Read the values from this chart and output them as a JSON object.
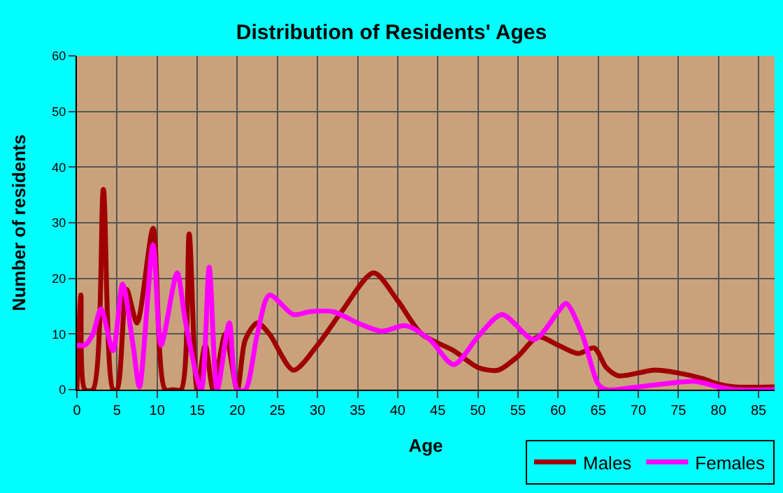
{
  "chart_data": {
    "type": "line",
    "title": "Distribution of Residents' Ages",
    "xlabel": "Age",
    "ylabel": "Number of residents",
    "xlim": [
      0,
      87
    ],
    "xticks": [
      0,
      5,
      10,
      15,
      20,
      25,
      30,
      35,
      40,
      45,
      50,
      55,
      60,
      65,
      70,
      75,
      80,
      85
    ],
    "ylim": [
      0,
      60
    ],
    "yticks": [
      0,
      10,
      20,
      30,
      40,
      50,
      60
    ],
    "grid": true,
    "legend": "bottom right",
    "marker": "none",
    "line_style": "solid",
    "series": [
      {
        "name": "Males",
        "color": "#a00000",
        "x": [
          0,
          0.5,
          1,
          2,
          3.3,
          4.5,
          5,
          6.2,
          7.5,
          9.5,
          11,
          12,
          13,
          14,
          15,
          16,
          17,
          18.5,
          20,
          21,
          22.5,
          24,
          27,
          30,
          33,
          37,
          40,
          43,
          47,
          50,
          52.5,
          55,
          57.5,
          60,
          62.5,
          64.5,
          66,
          67.5,
          70,
          72,
          75,
          78,
          80,
          82,
          87
        ],
        "values": [
          0,
          17,
          0,
          0,
          36,
          0,
          0,
          18,
          12,
          29,
          0,
          0,
          0,
          28,
          0,
          8,
          0,
          10,
          0,
          9,
          12,
          10,
          3.5,
          8,
          14,
          21,
          16,
          10,
          7,
          4,
          3.5,
          6,
          9.5,
          8,
          6.5,
          7.5,
          4,
          2.5,
          3,
          3.5,
          3,
          2,
          1,
          0.5,
          0.5
        ]
      },
      {
        "name": "Females",
        "color": "#ff00ff",
        "x": [
          0,
          1,
          2,
          3,
          4.5,
          5.7,
          7,
          7.8,
          9.5,
          10.5,
          12.5,
          13.5,
          15.5,
          16.5,
          17.5,
          19,
          20,
          21,
          22.5,
          24,
          27,
          29,
          32,
          35,
          38,
          41,
          44,
          47,
          50,
          53,
          57,
          60,
          61,
          63,
          65,
          66,
          70,
          73,
          77,
          80,
          82,
          87
        ],
        "values": [
          8,
          8,
          10,
          14.5,
          7,
          19,
          8,
          0.5,
          26,
          8,
          21,
          12.5,
          0,
          22,
          0,
          12,
          0,
          0,
          10,
          17,
          13.5,
          14,
          14,
          12,
          10.5,
          11.5,
          9,
          4.5,
          9.5,
          13.5,
          9,
          14,
          15.5,
          10,
          1,
          0,
          0.5,
          1,
          1.5,
          0.5,
          0,
          0
        ]
      }
    ]
  }
}
